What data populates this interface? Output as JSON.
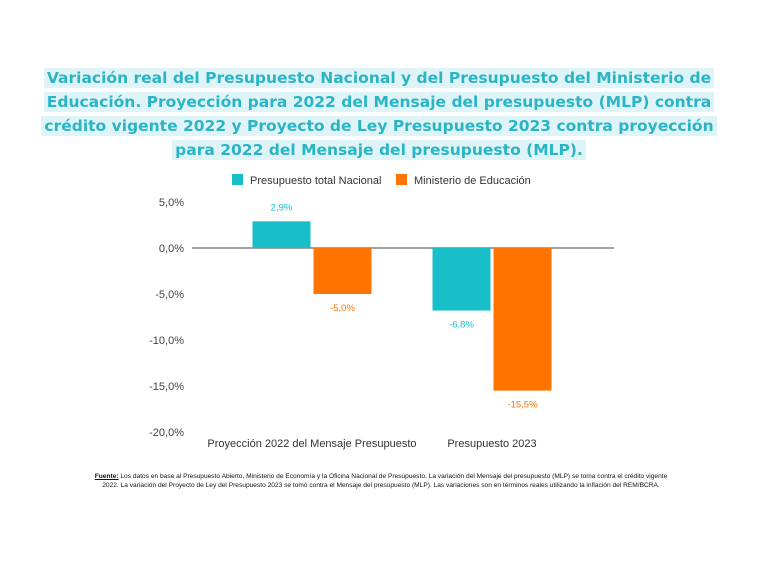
{
  "title": "Variación real del Presupuesto Nacional y del Presupuesto del Ministerio de Educación. Proyección para 2022 del Mensaje del presupuesto (MLP) contra crédito vigente 2022 y Proyecto de Ley Presupuesto 2023 contra proyección para 2022 del Mensaje del presupuesto (MLP).",
  "source": {
    "label": "Fuente:",
    "text": " Los datos en base al Presupuesto Abierto, Ministerio de Economía y la Oficina Nacional de Presupuesto. La variación del Mensaje del presupuesto (MLP) se toma contra el crédito vigente 2022. La variación del Proyecto de Ley del Presupuesto 2023 se tomó contra el Mensaje del presupuesto (MLP). Las variaciones son en términos reales utilizando la inflación del REM/BCRA."
  },
  "colors": {
    "nacional": "#18bfc9",
    "educacion": "#ff7300",
    "title": "#2ab5c6",
    "title_bg": "#dff4f7"
  },
  "chart_data": {
    "type": "bar",
    "categories": [
      "Proyección 2022 del Mensaje Presupuesto",
      "Presupuesto 2023"
    ],
    "series": [
      {
        "name": "Presupuesto total Nacional",
        "values": [
          2.9,
          -6.8
        ],
        "labels": [
          "2,9%",
          "-6,8%"
        ]
      },
      {
        "name": "Ministerio de Educación",
        "values": [
          -5.0,
          -15.5
        ],
        "labels": [
          "-5,0%",
          "-15,5%"
        ]
      }
    ],
    "y_ticks": [
      5,
      0,
      -5,
      -10,
      -15,
      -20
    ],
    "y_tick_labels": [
      "5,0%",
      "0,0%",
      "-5,0%",
      "-10,0%",
      "-15,0%",
      "-20,0%"
    ],
    "ylim": [
      -20,
      5
    ],
    "legend_position": "top-center",
    "grid": false
  }
}
